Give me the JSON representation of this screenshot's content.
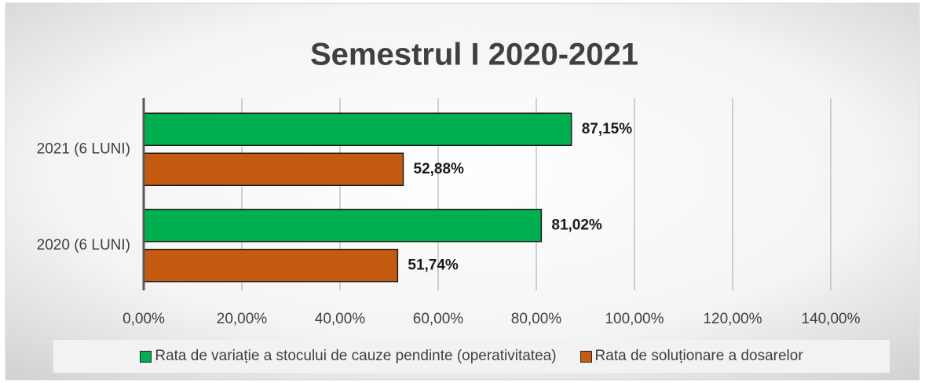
{
  "chart_data": {
    "type": "hbar",
    "title": "Semestrul I 2020-2021",
    "categories": [
      "2021 (6 LUNI)",
      "2020 (6 LUNI)"
    ],
    "series": [
      {
        "name": "Rata de variație a stocului de cauze pendinte (operativitatea)",
        "color": "#00b050",
        "values": [
          87.15,
          81.02
        ],
        "value_labels": [
          "87,15%",
          "81,02%"
        ]
      },
      {
        "name": "Rata de soluționare a dosarelor",
        "color": "#c55a11",
        "values": [
          52.88,
          51.74
        ],
        "value_labels": [
          "52,88%",
          "51,74%"
        ]
      }
    ],
    "xlim": [
      0,
      140
    ],
    "xticks": [
      {
        "value": 0,
        "label": "0,00%"
      },
      {
        "value": 20,
        "label": "20,00%"
      },
      {
        "value": 40,
        "label": "40,00%"
      },
      {
        "value": 60,
        "label": "60,00%"
      },
      {
        "value": 80,
        "label": "80,00%"
      },
      {
        "value": 100,
        "label": "100,00%"
      },
      {
        "value": 120,
        "label": "120,00%"
      },
      {
        "value": 140,
        "label": "140,00%"
      }
    ],
    "grid": true,
    "legend": "bottom"
  }
}
